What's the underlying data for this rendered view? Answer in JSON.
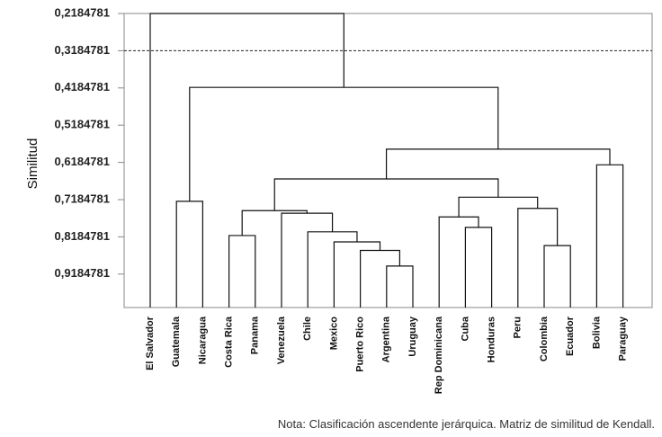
{
  "chart_data": {
    "type": "dendrogram",
    "ylabel": "Similitud",
    "yticks": [
      "0,2184781",
      "0,3184781",
      "0,4184781",
      "0,5184781",
      "0,6184781",
      "0,7184781",
      "0,8184781",
      "0,9184781"
    ],
    "ylim": [
      0.2184781,
      0.99
    ],
    "reference_line": 0.3184781,
    "leaves": [
      "El Salvador",
      "Guatemala",
      "Nicaragua",
      "Costa Rica",
      "Panama",
      "Venezuela",
      "Chile",
      "Mexico",
      "Puerto Rico",
      "Argentina",
      "Uruguay",
      "Rep Dominicana",
      "Cuba",
      "Honduras",
      "Peru",
      "Colombia",
      "Ecuador",
      "Bolivia",
      "Paraguay"
    ],
    "merges": [
      {
        "left": "Argentina",
        "right": "Uruguay",
        "height": 0.897
      },
      {
        "left": "Puerto Rico",
        "right": "m0",
        "height": 0.855
      },
      {
        "left": "Mexico",
        "right": "m1",
        "height": 0.832
      },
      {
        "left": "Chile",
        "right": "m2",
        "height": 0.805
      },
      {
        "left": "Venezuela",
        "right": "m3",
        "height": 0.755
      },
      {
        "left": "Costa Rica",
        "right": "Panama",
        "height": 0.815
      },
      {
        "left": "m5",
        "right": "m4",
        "height": 0.748
      },
      {
        "left": "Cuba",
        "right": "Honduras",
        "height": 0.793
      },
      {
        "left": "Rep Dominicana",
        "right": "m7",
        "height": 0.765
      },
      {
        "left": "Colombia",
        "right": "Ecuador",
        "height": 0.842
      },
      {
        "left": "Peru",
        "right": "m9",
        "height": 0.742
      },
      {
        "left": "m8",
        "right": "m10",
        "height": 0.712
      },
      {
        "left": "m6",
        "right": "m11",
        "height": 0.663
      },
      {
        "left": "Bolivia",
        "right": "Paraguay",
        "height": 0.625
      },
      {
        "left": "m12",
        "right": "m13",
        "height": 0.583
      },
      {
        "left": "Guatemala",
        "right": "Nicaragua",
        "height": 0.723
      },
      {
        "left": "m15",
        "right": "m14",
        "height": 0.417
      },
      {
        "left": "El Salvador",
        "right": "m16",
        "height": 0.2184781
      }
    ]
  },
  "note": "Nota: Clasificación ascendente jerárquica. Matriz de similitud de Kendall."
}
